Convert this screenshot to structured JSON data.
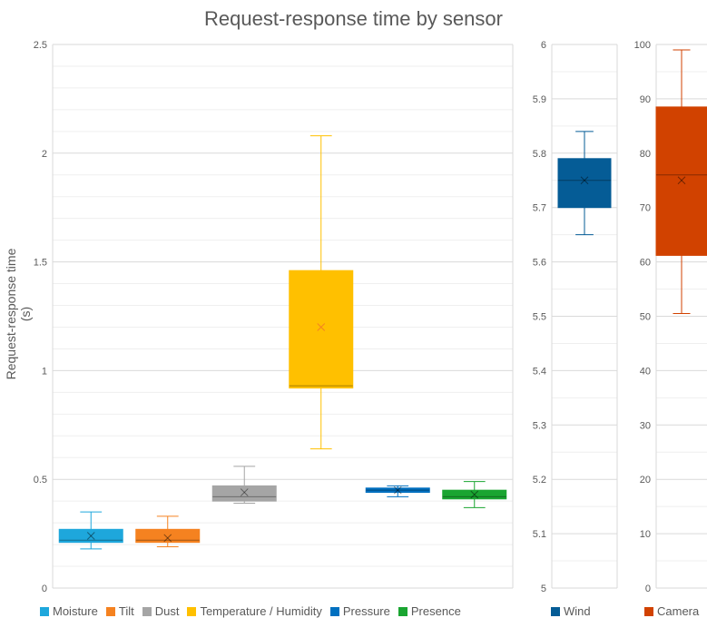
{
  "chart_data": [
    {
      "type": "box",
      "title": "Request-response time by sensor",
      "ylabel": "Request-response time (s)",
      "ylim": [
        0,
        2.5
      ],
      "yticks": [
        "0",
        "0.5",
        "1",
        "1.5",
        "2",
        "2.5"
      ],
      "grid": true,
      "legend_position": "bottom",
      "series": [
        {
          "name": "Moisture",
          "color": "#1ea7dc",
          "min": 0.18,
          "q1": 0.21,
          "median": 0.22,
          "q3": 0.27,
          "max": 0.35,
          "mean": 0.24
        },
        {
          "name": "Tilt",
          "color": "#f58220",
          "min": 0.19,
          "q1": 0.21,
          "median": 0.22,
          "q3": 0.27,
          "max": 0.33,
          "mean": 0.23
        },
        {
          "name": "Dust",
          "color": "#a5a5a5",
          "min": 0.39,
          "q1": 0.4,
          "median": 0.42,
          "q3": 0.47,
          "max": 0.56,
          "mean": 0.44
        },
        {
          "name": "Temperature / Humidity",
          "color": "#ffc000",
          "min": 0.64,
          "q1": 0.92,
          "median": 0.93,
          "q3": 1.46,
          "max": 2.08,
          "mean": 1.2
        },
        {
          "name": "Pressure",
          "color": "#0070c0",
          "min": 0.42,
          "q1": 0.44,
          "median": 0.45,
          "q3": 0.46,
          "max": 0.47,
          "mean": 0.45
        },
        {
          "name": "Presence",
          "color": "#1aa531",
          "min": 0.37,
          "q1": 0.41,
          "median": 0.42,
          "q3": 0.45,
          "max": 0.49,
          "mean": 0.43
        }
      ]
    },
    {
      "type": "box",
      "ylim": [
        5,
        6
      ],
      "yticks": [
        "5",
        "5.1",
        "5.2",
        "5.3",
        "5.4",
        "5.5",
        "5.6",
        "5.7",
        "5.8",
        "5.9",
        "6"
      ],
      "grid": true,
      "legend_position": "bottom",
      "series": [
        {
          "name": "Wind",
          "color": "#055c96",
          "min": 5.65,
          "q1": 5.7,
          "median": 5.75,
          "q3": 5.79,
          "max": 5.84,
          "mean": 5.75
        }
      ]
    },
    {
      "type": "box",
      "ylim": [
        0,
        100
      ],
      "yticks": [
        "0",
        "10",
        "20",
        "30",
        "40",
        "50",
        "60",
        "70",
        "80",
        "90",
        "100"
      ],
      "grid": true,
      "legend_position": "bottom",
      "series": [
        {
          "name": "Camera",
          "color": "#d14200",
          "min": 50.5,
          "q1": 61.2,
          "median": 76,
          "q3": 88.5,
          "max": 99,
          "mean": 75
        }
      ]
    }
  ]
}
